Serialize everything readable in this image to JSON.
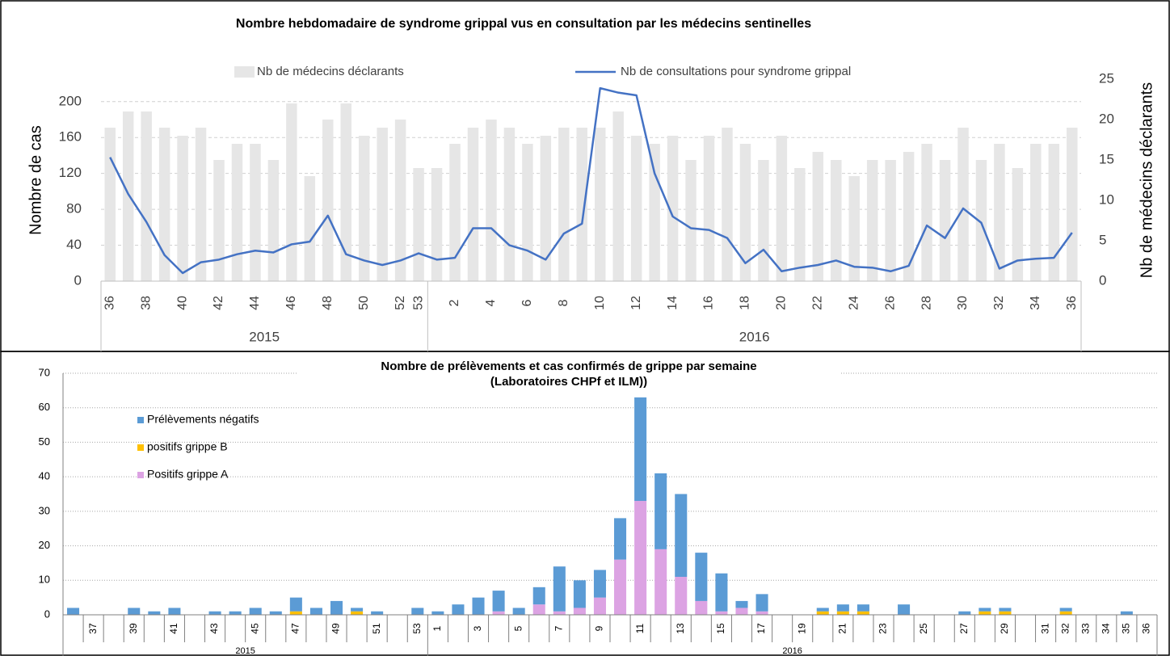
{
  "chart_data": [
    {
      "type": "bar_line",
      "title": "Nombre hebdomadaire de syndrome grippal vus en consultation par les médecins sentinelles",
      "ylabel": "Nombre de cas",
      "y2label": "Nb de médecins déclarants",
      "ylim": [
        0,
        225
      ],
      "yticks": [
        0,
        40,
        80,
        120,
        160,
        200
      ],
      "y2lim": [
        0,
        25
      ],
      "y2ticks": [
        0,
        5,
        10,
        15,
        20,
        25
      ],
      "grid": true,
      "category_groups": [
        {
          "label": "2015",
          "categories": [
            "36",
            null,
            "38",
            null,
            "40",
            null,
            "42",
            null,
            "44",
            null,
            "46",
            null,
            "48",
            null,
            "50",
            null,
            "52",
            "53"
          ]
        },
        {
          "label": "2016",
          "categories": [
            null,
            "2",
            null,
            "4",
            null,
            "6",
            null,
            "8",
            null,
            "10",
            null,
            "12",
            null,
            "14",
            null,
            "16",
            null,
            "18",
            null,
            "20",
            null,
            "22",
            null,
            "24",
            null,
            "26",
            null,
            "28",
            null,
            "30",
            null,
            "32",
            null,
            "34",
            null,
            "36"
          ]
        }
      ],
      "series": [
        {
          "name": "Nb de médecins déclarants",
          "type": "bar",
          "axis": "y2",
          "color": "#e6e6e6",
          "values": [
            19,
            21,
            21,
            19,
            18,
            19,
            15,
            17,
            17,
            15,
            22,
            13,
            20,
            22,
            18,
            19,
            20,
            14,
            14,
            17,
            19,
            20,
            19,
            17,
            18,
            19,
            19,
            19,
            21,
            18,
            17,
            18,
            15,
            18,
            19,
            17,
            15,
            18,
            14,
            16,
            15,
            13,
            15,
            15,
            16,
            17,
            15,
            19,
            15,
            17,
            14,
            17,
            17,
            19
          ]
        },
        {
          "name": "Nb de consultations pour syndrome grippal",
          "type": "line",
          "axis": "y",
          "color": "#4472c4",
          "values": [
            138,
            97,
            66,
            29,
            9,
            21,
            24,
            30,
            34,
            32,
            41,
            44,
            73,
            30,
            23,
            18,
            23,
            31,
            24,
            26,
            59,
            59,
            40,
            34,
            24,
            53,
            64,
            215,
            210,
            207,
            120,
            72,
            59,
            57,
            48,
            20,
            35,
            11,
            15,
            18,
            23,
            16,
            15,
            11,
            17,
            62,
            48,
            81,
            65,
            14,
            23,
            25,
            26,
            54
          ]
        }
      ]
    },
    {
      "type": "stacked_bar",
      "title": "Nombre de prélèvements et cas confirmés de grippe par semaine",
      "subtitle": "(Laboratoires CHPf et ILM))",
      "ylim": [
        0,
        70
      ],
      "yticks": [
        0,
        10,
        20,
        30,
        40,
        50,
        60,
        70
      ],
      "grid": true,
      "legend": "upper left",
      "category_groups": [
        {
          "label": "2015",
          "categories": [
            null,
            "37",
            null,
            "39",
            null,
            "41",
            null,
            "43",
            null,
            "45",
            null,
            "47",
            null,
            "49",
            null,
            "51",
            null,
            "53"
          ]
        },
        {
          "label": "2016",
          "categories": [
            "1",
            null,
            "3",
            null,
            "5",
            null,
            "7",
            null,
            "9",
            null,
            "11",
            null,
            "13",
            null,
            "15",
            null,
            "17",
            null,
            "19",
            null,
            "21",
            null,
            "23",
            null,
            "25",
            null,
            "27",
            null,
            "29",
            null,
            "31",
            "32",
            "33",
            "34",
            "35",
            "36"
          ]
        }
      ],
      "series": [
        {
          "name": "Positifs grippe A",
          "color": "#dca3e3",
          "values": [
            0,
            0,
            0,
            0,
            0,
            0,
            0,
            0,
            0,
            0,
            0,
            0,
            0,
            0,
            0,
            0,
            0,
            0,
            0,
            0,
            0,
            1,
            0,
            3,
            1,
            2,
            5,
            16,
            33,
            19,
            11,
            4,
            1,
            2,
            1,
            0,
            0,
            0,
            0,
            0,
            0,
            0,
            0,
            0,
            0,
            0,
            0,
            0,
            0,
            0,
            0,
            0,
            0,
            0
          ]
        },
        {
          "name": "positifs grippe B",
          "color": "#ffc000",
          "values": [
            0,
            0,
            0,
            0,
            0,
            0,
            0,
            0,
            0,
            0,
            0,
            1,
            0,
            0,
            1,
            0,
            0,
            0,
            0,
            0,
            0,
            0,
            0,
            0,
            0,
            0,
            0,
            0,
            0,
            0,
            0,
            0,
            0,
            0,
            0,
            0,
            0,
            1,
            1,
            1,
            0,
            0,
            0,
            0,
            0,
            1,
            1,
            0,
            0,
            1,
            0,
            0,
            0,
            0
          ]
        },
        {
          "name": "Prélèvements négatifs",
          "color": "#5b9bd5",
          "values": [
            2,
            0,
            0,
            2,
            1,
            2,
            0,
            1,
            1,
            2,
            1,
            4,
            2,
            4,
            1,
            1,
            0,
            2,
            1,
            3,
            5,
            6,
            2,
            5,
            13,
            8,
            8,
            12,
            30,
            22,
            24,
            14,
            11,
            2,
            5,
            0,
            0,
            1,
            2,
            2,
            0,
            3,
            0,
            0,
            1,
            1,
            1,
            0,
            0,
            1,
            0,
            0,
            1,
            0
          ]
        }
      ]
    }
  ]
}
